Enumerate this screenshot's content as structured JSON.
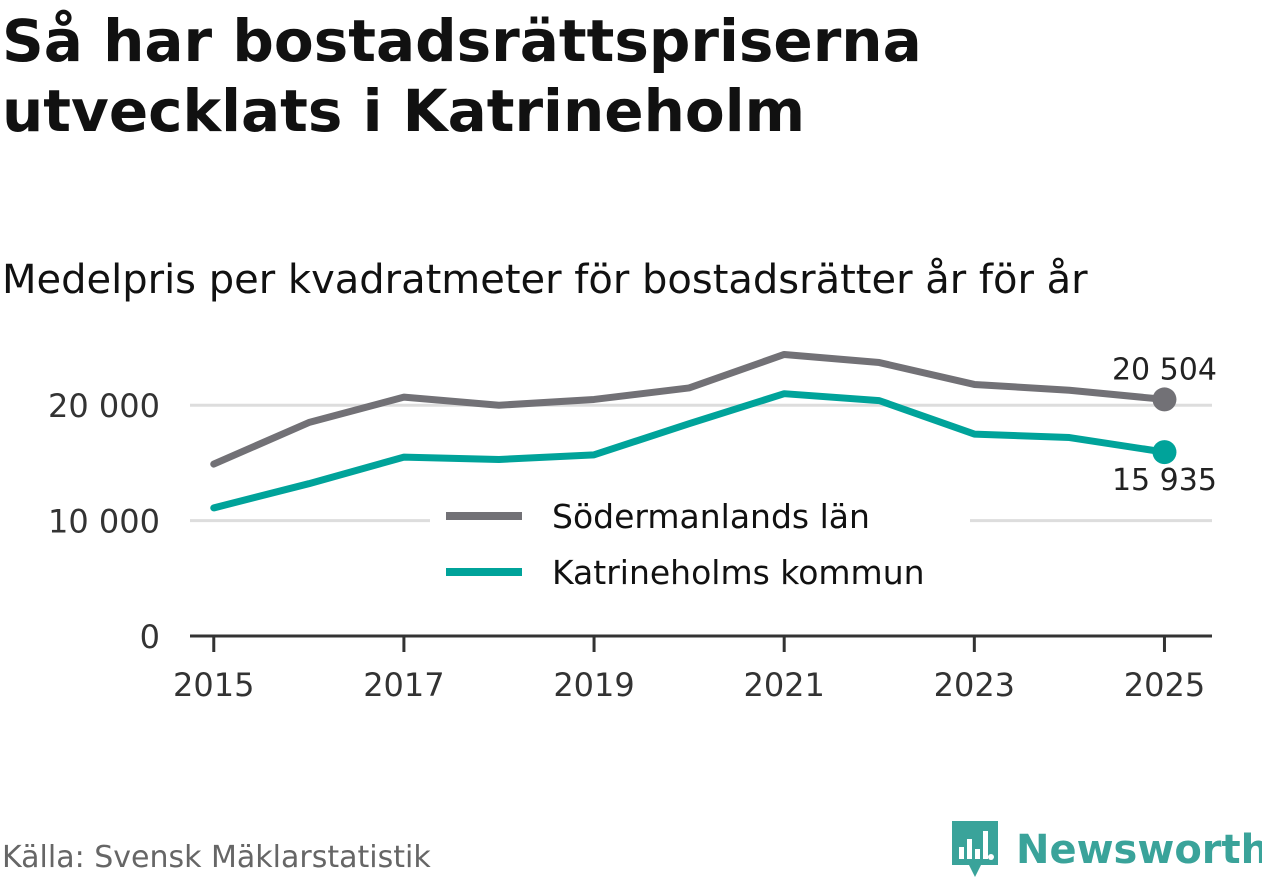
{
  "header": {
    "title": "Så har bostadsrättspriserna utvecklats i Katrineholm",
    "subtitle": "Medelpris per kvadratmeter för bostadsrätter år för år"
  },
  "footer": {
    "source": "Källa: Svensk Mäklarstatistik",
    "brand": "Newsworthy"
  },
  "chart_data": {
    "type": "line",
    "x": [
      2015,
      2016,
      2017,
      2018,
      2019,
      2020,
      2021,
      2022,
      2023,
      2024,
      2025
    ],
    "xticks": [
      2015,
      2017,
      2019,
      2021,
      2023,
      2025
    ],
    "xtick_labels": [
      "2015",
      "2017",
      "2019",
      "2021",
      "2023",
      "2025"
    ],
    "yticks": [
      0,
      10000,
      20000
    ],
    "ytick_labels": [
      "0",
      "10 000",
      "20 000"
    ],
    "ylim": [
      0,
      26000
    ],
    "xlim": [
      2014.75,
      2025.5
    ],
    "grid": true,
    "legend_position": "center",
    "series": [
      {
        "name": "Södermanlands län",
        "color": "#727176",
        "values": [
          14900,
          18500,
          20700,
          20000,
          20500,
          21500,
          24400,
          23700,
          21800,
          21300,
          20504
        ],
        "end_label": "20 504"
      },
      {
        "name": "Katrineholms kommun",
        "color": "#00a39a",
        "values": [
          11100,
          13200,
          15500,
          15300,
          15700,
          18400,
          21000,
          20400,
          17500,
          17200,
          15935
        ],
        "end_label": "15 935"
      }
    ]
  }
}
